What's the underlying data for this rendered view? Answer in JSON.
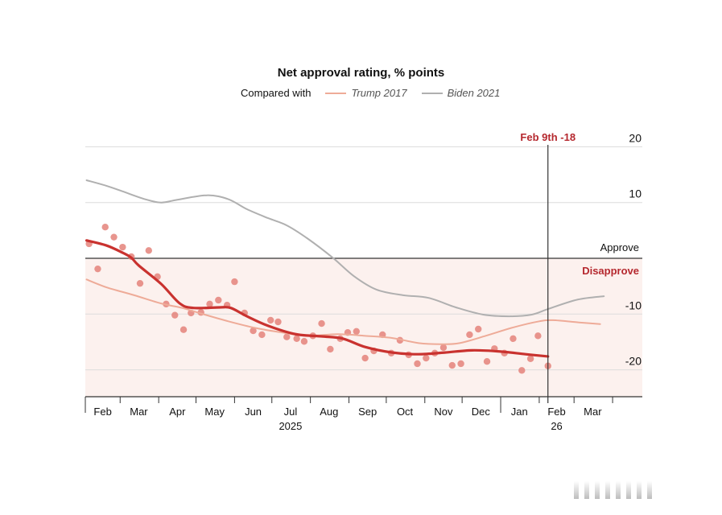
{
  "chart_data": {
    "type": "line",
    "title": "Net approval rating, % points",
    "legend": {
      "prefix": "Compared with",
      "items": [
        {
          "name": "Trump 2017",
          "color": "#eeab98"
        },
        {
          "name": "Biden 2021",
          "color": "#b0b0b0"
        }
      ],
      "placement": "top-center"
    },
    "y_axis": {
      "ylim": [
        -25,
        20
      ],
      "ticks": [
        20,
        10,
        -10,
        -20
      ],
      "tick_labels": [
        "20",
        "10",
        "-10",
        "-20"
      ],
      "position": "right",
      "grid": true
    },
    "x_axis": {
      "unit": "days since Feb 1 2025",
      "xlim": [
        0,
        450
      ],
      "month_ticks": [
        0,
        28,
        59,
        89,
        120,
        150,
        181,
        212,
        242,
        273,
        303,
        334,
        365,
        393,
        424
      ],
      "year_tick": 334,
      "month_labels": [
        {
          "label": "Feb",
          "x": 14
        },
        {
          "label": "Mar",
          "x": 43
        },
        {
          "label": "Apr",
          "x": 74
        },
        {
          "label": "May",
          "x": 104
        },
        {
          "label": "Jun",
          "x": 135
        },
        {
          "label": "Jul",
          "x": 165
        },
        {
          "label": "Aug",
          "x": 196
        },
        {
          "label": "Sep",
          "x": 227
        },
        {
          "label": "Oct",
          "x": 257
        },
        {
          "label": "Nov",
          "x": 288
        },
        {
          "label": "Dec",
          "x": 318
        },
        {
          "label": "Jan",
          "x": 349
        },
        {
          "label": "Feb",
          "x": 379
        },
        {
          "label": "Mar",
          "x": 408
        }
      ],
      "year_labels": [
        {
          "label": "2025",
          "x": 165
        },
        {
          "label": "26",
          "x": 379
        }
      ]
    },
    "zones": {
      "approve_label": "Approve",
      "disapprove_label": "Disapprove",
      "disapprove_color": "#fcf1ee"
    },
    "annotation": {
      "label": "Feb 9th -18",
      "x": 372,
      "color": "#b5282e"
    },
    "series": [
      {
        "name": "Biden 2021",
        "kind": "line",
        "color": "#b0b0b0",
        "points": [
          [
            1,
            14.0
          ],
          [
            17,
            13.0
          ],
          [
            30,
            12.0
          ],
          [
            48,
            10.6
          ],
          [
            61,
            10.0
          ],
          [
            74,
            10.5
          ],
          [
            98,
            11.3
          ],
          [
            115,
            10.6
          ],
          [
            130,
            8.8
          ],
          [
            147,
            7.2
          ],
          [
            162,
            5.9
          ],
          [
            179,
            3.5
          ],
          [
            199,
            0.1
          ],
          [
            216,
            -3.2
          ],
          [
            234,
            -5.6
          ],
          [
            255,
            -6.6
          ],
          [
            276,
            -7.1
          ],
          [
            298,
            -8.8
          ],
          [
            320,
            -10.1
          ],
          [
            341,
            -10.4
          ],
          [
            359,
            -10.1
          ],
          [
            372,
            -9.1
          ],
          [
            396,
            -7.4
          ],
          [
            417,
            -6.8
          ]
        ]
      },
      {
        "name": "Trump 2017",
        "kind": "line",
        "color": "#eeab98",
        "points": [
          [
            1,
            -3.8
          ],
          [
            17,
            -5.2
          ],
          [
            39,
            -6.6
          ],
          [
            61,
            -8.1
          ],
          [
            78,
            -8.9
          ],
          [
            93,
            -9.9
          ],
          [
            115,
            -11.3
          ],
          [
            137,
            -12.5
          ],
          [
            158,
            -13.3
          ],
          [
            179,
            -13.9
          ],
          [
            203,
            -13.6
          ],
          [
            225,
            -13.9
          ],
          [
            247,
            -14.3
          ],
          [
            268,
            -15.2
          ],
          [
            286,
            -15.4
          ],
          [
            301,
            -15.2
          ],
          [
            322,
            -13.9
          ],
          [
            344,
            -12.4
          ],
          [
            365,
            -11.3
          ],
          [
            376,
            -11.1
          ],
          [
            397,
            -11.5
          ],
          [
            414,
            -11.8
          ]
        ]
      },
      {
        "name": "Net approval polls",
        "kind": "scatter",
        "color": "#e4827a",
        "points": [
          [
            3,
            2.6
          ],
          [
            10,
            -1.9
          ],
          [
            16,
            5.6
          ],
          [
            23,
            3.8
          ],
          [
            30,
            2.0
          ],
          [
            37,
            0.3
          ],
          [
            44,
            -4.5
          ],
          [
            51,
            1.4
          ],
          [
            58,
            -3.3
          ],
          [
            65,
            -8.2
          ],
          [
            72,
            -10.2
          ],
          [
            79,
            -12.8
          ],
          [
            85,
            -9.8
          ],
          [
            93,
            -9.7
          ],
          [
            100,
            -8.2
          ],
          [
            107,
            -7.5
          ],
          [
            114,
            -8.4
          ],
          [
            120,
            -4.2
          ],
          [
            128,
            -9.8
          ],
          [
            135,
            -13.0
          ],
          [
            142,
            -13.7
          ],
          [
            149,
            -11.1
          ],
          [
            155,
            -11.4
          ],
          [
            162,
            -14.1
          ],
          [
            170,
            -14.4
          ],
          [
            176,
            -14.9
          ],
          [
            183,
            -13.9
          ],
          [
            190,
            -11.7
          ],
          [
            197,
            -16.3
          ],
          [
            205,
            -14.4
          ],
          [
            211,
            -13.3
          ],
          [
            218,
            -13.1
          ],
          [
            225,
            -17.9
          ],
          [
            232,
            -16.6
          ],
          [
            239,
            -13.7
          ],
          [
            246,
            -17.0
          ],
          [
            253,
            -14.7
          ],
          [
            260,
            -17.3
          ],
          [
            267,
            -18.9
          ],
          [
            274,
            -17.9
          ],
          [
            281,
            -17.0
          ],
          [
            288,
            -16.0
          ],
          [
            295,
            -19.2
          ],
          [
            302,
            -18.9
          ],
          [
            309,
            -13.7
          ],
          [
            316,
            -12.7
          ],
          [
            323,
            -18.5
          ],
          [
            329,
            -16.2
          ],
          [
            337,
            -17.0
          ],
          [
            344,
            -14.4
          ],
          [
            351,
            -20.1
          ],
          [
            358,
            -18.0
          ],
          [
            364,
            -13.9
          ],
          [
            372,
            -19.3
          ]
        ]
      },
      {
        "name": "Net approval trend",
        "kind": "line",
        "color": "#c9322f",
        "points": [
          [
            1,
            3.2
          ],
          [
            17,
            2.3
          ],
          [
            30,
            1.0
          ],
          [
            37,
            0.1
          ],
          [
            43,
            -1.3
          ],
          [
            61,
            -4.6
          ],
          [
            76,
            -8.1
          ],
          [
            87,
            -8.9
          ],
          [
            108,
            -8.8
          ],
          [
            117,
            -8.9
          ],
          [
            130,
            -10.4
          ],
          [
            147,
            -12.1
          ],
          [
            169,
            -13.6
          ],
          [
            190,
            -14.0
          ],
          [
            207,
            -14.4
          ],
          [
            225,
            -15.9
          ],
          [
            247,
            -16.9
          ],
          [
            268,
            -17.2
          ],
          [
            289,
            -16.9
          ],
          [
            311,
            -16.5
          ],
          [
            333,
            -16.7
          ],
          [
            354,
            -17.2
          ],
          [
            372,
            -17.6
          ]
        ]
      }
    ]
  }
}
